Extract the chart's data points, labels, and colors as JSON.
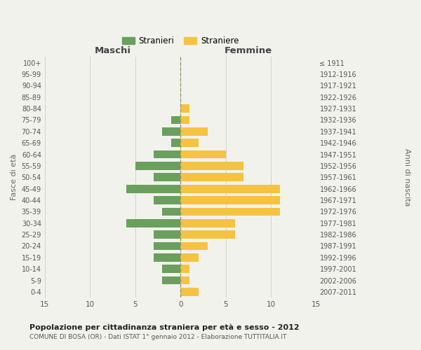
{
  "age_groups": [
    "0-4",
    "5-9",
    "10-14",
    "15-19",
    "20-24",
    "25-29",
    "30-34",
    "35-39",
    "40-44",
    "45-49",
    "50-54",
    "55-59",
    "60-64",
    "65-69",
    "70-74",
    "75-79",
    "80-84",
    "85-89",
    "90-94",
    "95-99",
    "100+"
  ],
  "birth_years": [
    "2007-2011",
    "2002-2006",
    "1997-2001",
    "1992-1996",
    "1987-1991",
    "1982-1986",
    "1977-1981",
    "1972-1976",
    "1967-1971",
    "1962-1966",
    "1957-1961",
    "1952-1956",
    "1947-1951",
    "1942-1946",
    "1937-1941",
    "1932-1936",
    "1927-1931",
    "1922-1926",
    "1917-1921",
    "1912-1916",
    "≤ 1911"
  ],
  "maschi": [
    0,
    2,
    2,
    3,
    3,
    3,
    6,
    2,
    3,
    6,
    3,
    5,
    3,
    1,
    2,
    1,
    0,
    0,
    0,
    0,
    0
  ],
  "femmine": [
    2,
    1,
    1,
    2,
    3,
    6,
    6,
    11,
    11,
    11,
    7,
    7,
    5,
    2,
    3,
    1,
    1,
    0,
    0,
    0,
    0
  ],
  "color_maschi": "#6a9f5e",
  "color_femmine": "#f5c242",
  "title": "Popolazione per cittadinanza straniera per età e sesso - 2012",
  "subtitle": "COMUNE DI BOSA (OR) - Dati ISTAT 1° gennaio 2012 - Elaborazione TUTTITALIA.IT",
  "header_left": "Maschi",
  "header_right": "Femmine",
  "ylabel_left": "Fasce di età",
  "ylabel_right": "Anni di nascita",
  "xlim": 15,
  "legend_stranieri": "Stranieri",
  "legend_straniere": "Straniere",
  "bg_color": "#f2f2ed",
  "grid_color": "#d0d0d0"
}
